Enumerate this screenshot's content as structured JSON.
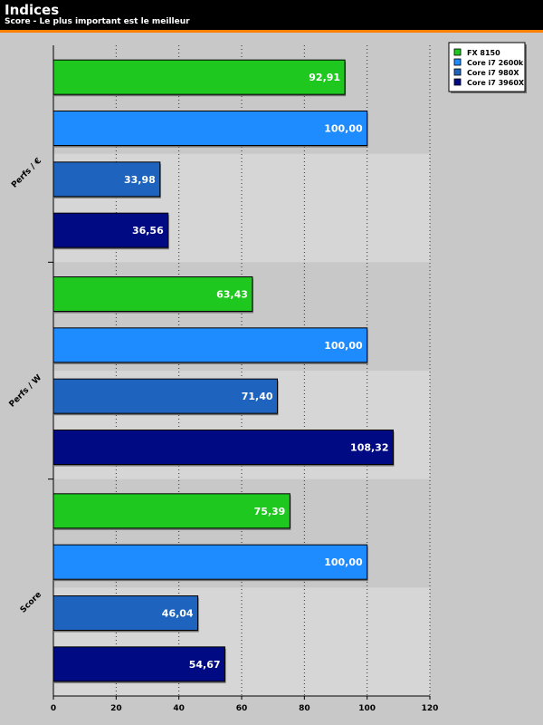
{
  "header": {
    "title": "Indices",
    "subtitle": "Score - Le plus important est le meilleur"
  },
  "colors": {
    "header_bg": "#000000",
    "accent": "#ff8000",
    "background": "#c8c8c8",
    "band_alt": "#d6d6d6"
  },
  "chart_data": {
    "type": "bar",
    "orientation": "horizontal",
    "categories": [
      "Perfs / €",
      "Perfs / W",
      "Score"
    ],
    "series": [
      {
        "name": "FX 8150",
        "color": "#1ec81e",
        "values": [
          92.91,
          63.43,
          75.39
        ],
        "labels": [
          "92,91",
          "63,43",
          "75,39"
        ]
      },
      {
        "name": "Core i7 2600k",
        "color": "#1e8cff",
        "values": [
          100.0,
          100.0,
          100.0
        ],
        "labels": [
          "100,00",
          "100,00",
          "100,00"
        ]
      },
      {
        "name": "Core i7 980X",
        "color": "#1e64be",
        "values": [
          33.98,
          71.4,
          46.04
        ],
        "labels": [
          "33,98",
          "71,40",
          "46,04"
        ]
      },
      {
        "name": "Core i7 3960X",
        "color": "#000a82",
        "values": [
          36.56,
          108.32,
          54.67
        ],
        "labels": [
          "36,56",
          "108,32",
          "54,67"
        ]
      }
    ],
    "xlim": [
      0,
      120
    ],
    "xticks": [
      0,
      20,
      40,
      60,
      80,
      100,
      120
    ],
    "grid": true,
    "legend_position": "top-right"
  }
}
